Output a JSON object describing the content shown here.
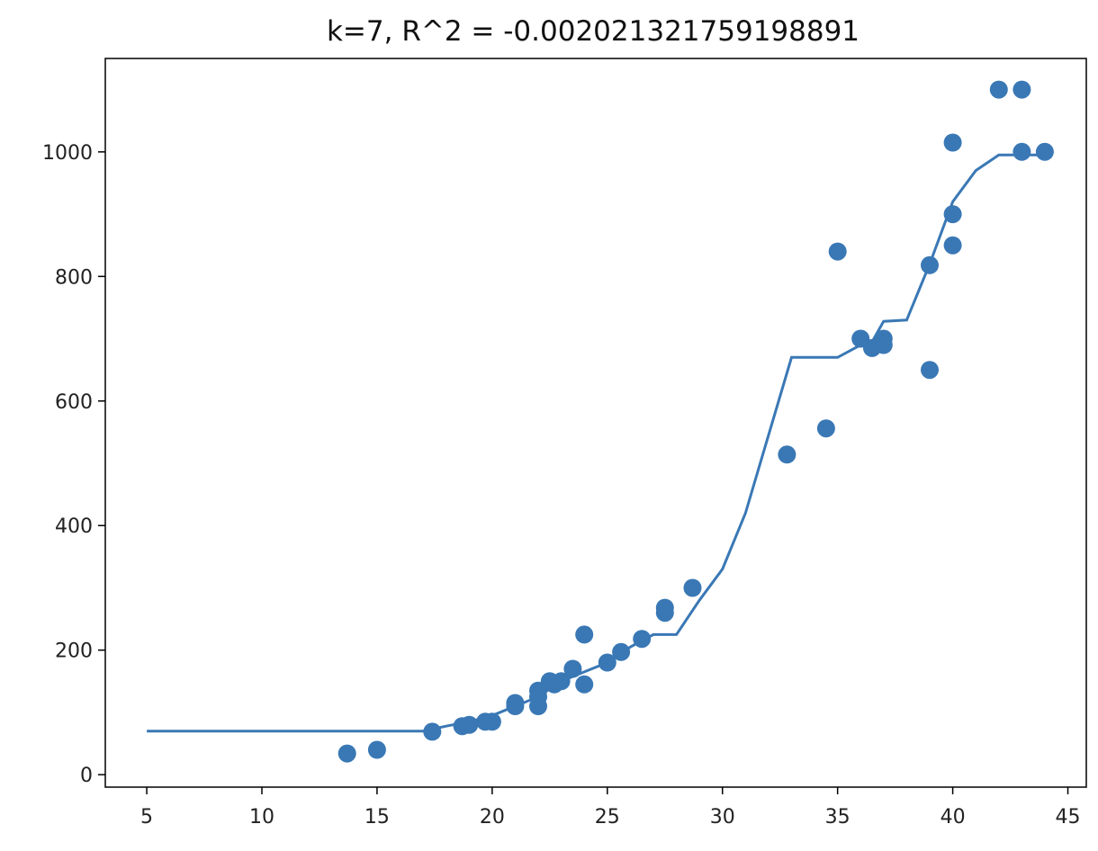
{
  "chart_data": {
    "type": "scatter",
    "title": "k=7, R^2 = -0.002021321759198891",
    "xlabel": "",
    "ylabel": "",
    "xlim": [
      3.2,
      45.8
    ],
    "ylim": [
      -20,
      1150
    ],
    "grid": false,
    "x_ticks": [
      "5",
      "10",
      "15",
      "20",
      "25",
      "30",
      "35",
      "40",
      "45"
    ],
    "y_ticks": [
      "0",
      "200",
      "400",
      "600",
      "800",
      "1000"
    ],
    "colors": {
      "series": "#3a78b5",
      "axes": "#000000",
      "text": "#222222"
    },
    "series": [
      {
        "kind": "scatter",
        "points": [
          [
            13.7,
            34
          ],
          [
            15.0,
            40
          ],
          [
            17.4,
            69
          ],
          [
            18.7,
            78
          ],
          [
            19.0,
            80
          ],
          [
            19.7,
            85
          ],
          [
            20.0,
            85
          ],
          [
            21.0,
            110
          ],
          [
            21.0,
            115
          ],
          [
            22.0,
            110
          ],
          [
            22.0,
            125
          ],
          [
            22.0,
            135
          ],
          [
            22.5,
            150
          ],
          [
            22.7,
            145
          ],
          [
            23.0,
            150
          ],
          [
            23.5,
            170
          ],
          [
            24.0,
            145
          ],
          [
            24.0,
            225
          ],
          [
            25.0,
            180
          ],
          [
            25.6,
            197
          ],
          [
            26.5,
            218
          ],
          [
            27.5,
            260
          ],
          [
            27.5,
            268
          ],
          [
            28.7,
            300
          ],
          [
            32.8,
            514
          ],
          [
            34.5,
            556
          ],
          [
            35.0,
            840
          ],
          [
            36.0,
            700
          ],
          [
            36.5,
            685
          ],
          [
            37.0,
            690
          ],
          [
            37.0,
            700
          ],
          [
            39.0,
            650
          ],
          [
            39.0,
            818
          ],
          [
            40.0,
            850
          ],
          [
            40.0,
            900
          ],
          [
            40.0,
            1015
          ],
          [
            42.0,
            1100
          ],
          [
            43.0,
            1100
          ],
          [
            43.0,
            1000
          ],
          [
            44.0,
            1000
          ]
        ]
      },
      {
        "kind": "line",
        "points": [
          [
            5,
            70
          ],
          [
            17,
            70
          ],
          [
            18,
            78
          ],
          [
            19,
            85
          ],
          [
            20,
            95
          ],
          [
            21,
            110
          ],
          [
            22,
            125
          ],
          [
            23,
            150
          ],
          [
            24,
            165
          ],
          [
            25,
            180
          ],
          [
            26,
            205
          ],
          [
            27,
            225
          ],
          [
            28,
            225
          ],
          [
            29,
            280
          ],
          [
            30,
            330
          ],
          [
            31,
            420
          ],
          [
            32,
            545
          ],
          [
            33,
            670
          ],
          [
            34,
            670
          ],
          [
            35,
            670
          ],
          [
            36,
            690
          ],
          [
            36.5,
            695
          ],
          [
            37,
            728
          ],
          [
            38,
            730
          ],
          [
            39,
            820
          ],
          [
            40,
            920
          ],
          [
            41,
            970
          ],
          [
            42,
            995
          ],
          [
            44,
            995
          ]
        ]
      }
    ]
  }
}
